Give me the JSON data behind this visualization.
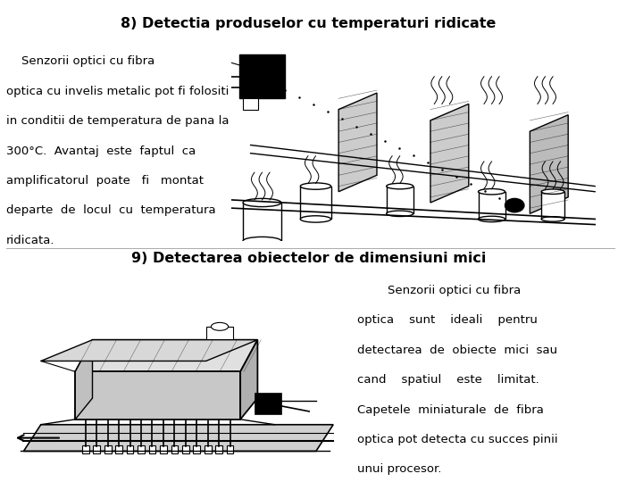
{
  "title1": "8) Detectia produselor cu temperaturi ridicate",
  "title2": "9) Detectarea obiectelor de dimensiuni mici",
  "text1_line1": "    Senzorii optici cu fibra",
  "text1_line2": "optica cu invelis metalic pot fi folositi",
  "text1_line3": "in conditii de temperatura de pana la",
  "text1_line4": "300°C.  Avantaj  este  faptul  ca",
  "text1_line5": "amplificatorul  poate   fi   montat",
  "text1_line6": "departe  de  locul  cu  temperatura",
  "text1_line7": "ridicata.",
  "text2_line1": "        Senzorii optici cu fibra",
  "text2_line2": "optica    sunt    ideali    pentru",
  "text2_line3": "detectarea  de  obiecte  mici  sau",
  "text2_line4": "cand    spatiul    este    limitat.",
  "text2_line5": "Capetele  miniaturale  de  fibra",
  "text2_line6": "optica pot detecta cu succes pinii",
  "text2_line7": "unui procesor.",
  "bg_color": "#ffffff",
  "title_fontsize": 11.5,
  "body_fontsize": 9.5,
  "text_color": "#000000",
  "red_bar_color": "#cc0000",
  "black_bar_color": "#1a1a1a"
}
